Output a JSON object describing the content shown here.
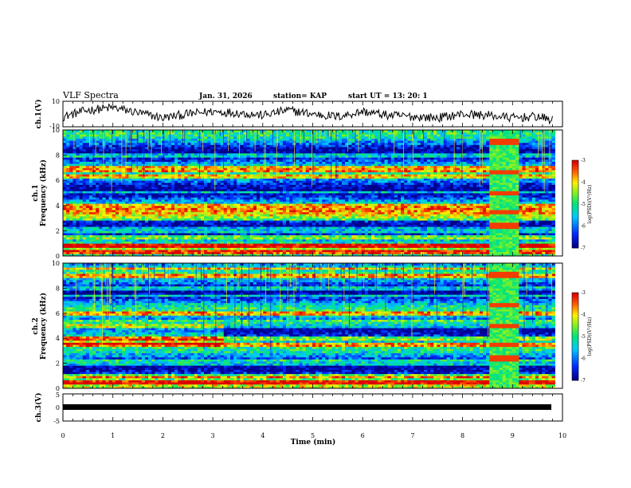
{
  "header": {
    "title": "VLF Spectra",
    "date": "Jan. 31, 2026",
    "station": "station= KAP",
    "start": "start UT =  13: 20: 1"
  },
  "chart_data": [
    {
      "type": "line",
      "panel": "ch1-waveform",
      "ylabel": "ch.1(V)",
      "ylim": [
        -10,
        10
      ],
      "yticks": [
        "10",
        "-10"
      ],
      "xlim": [
        0,
        10
      ],
      "description_series": "raw waveform",
      "x": [
        0,
        0.5,
        1.0,
        1.5,
        2.0,
        2.5,
        3.0,
        3.5,
        4.0,
        4.5,
        5.0,
        5.5,
        6.0,
        6.5,
        7.0,
        7.5,
        8.0,
        8.5,
        9.0,
        9.5,
        9.8
      ],
      "y": [
        -2,
        3,
        5,
        1,
        -3,
        0,
        2,
        1,
        -1,
        3,
        0,
        -2,
        2,
        -1,
        -2,
        -3,
        0,
        -1,
        -3,
        -2,
        -5
      ]
    },
    {
      "type": "heatmap",
      "panel": "ch1-spectrogram",
      "ylabel_lines": [
        "ch.1",
        "Frequency (kHz)"
      ],
      "ylim": [
        0,
        10
      ],
      "yticks": [
        "0",
        "2",
        "4",
        "6",
        "8",
        "10"
      ],
      "xlim": [
        0,
        9.85
      ],
      "colorbar": {
        "label": "log(PSD)(V²/Hz)",
        "range": [
          -7,
          -3
        ],
        "ticks": [
          "-3",
          "-4",
          "-5",
          "-6",
          "-7"
        ]
      },
      "event_interval_min": [
        8.55,
        9.15
      ],
      "bright_bands_khz": [
        0.3,
        0.8,
        1.5,
        2.0,
        2.2,
        3.0,
        3.3,
        3.7,
        4.0,
        5.1,
        6.3,
        6.8,
        7.0,
        8.0
      ]
    },
    {
      "type": "heatmap",
      "panel": "ch2-spectrogram",
      "ylabel_lines": [
        "ch.2",
        "Frequency (kHz)"
      ],
      "ylim": [
        0,
        10
      ],
      "yticks": [
        "0",
        "2",
        "4",
        "6",
        "8",
        "10"
      ],
      "xlim": [
        0,
        9.85
      ],
      "colorbar": {
        "label": "log(PSD)(V²/Hz)",
        "range": [
          -7,
          -3
        ],
        "ticks": [
          "-3",
          "-4",
          "-5",
          "-6",
          "-7"
        ]
      },
      "event_interval_min": [
        8.55,
        9.15
      ],
      "bright_bands_khz": [
        0.5,
        1.0,
        1.9,
        2.2,
        3.5,
        4.0,
        5.0,
        5.3,
        6.0,
        7.4,
        8.0,
        9.0,
        9.6
      ]
    },
    {
      "type": "line",
      "panel": "ch3-waveform",
      "ylabel": "ch.3(V)",
      "ylim": [
        -5,
        5
      ],
      "yticks": [
        "5",
        "0",
        "-5"
      ],
      "xlim": [
        0,
        10
      ],
      "x": [
        0,
        9.85
      ],
      "y": [
        0,
        0
      ]
    }
  ],
  "xaxis": {
    "label": "Time (min)",
    "ticks": [
      "0",
      "1",
      "2",
      "3",
      "4",
      "5",
      "6",
      "7",
      "8",
      "9",
      "10"
    ]
  }
}
